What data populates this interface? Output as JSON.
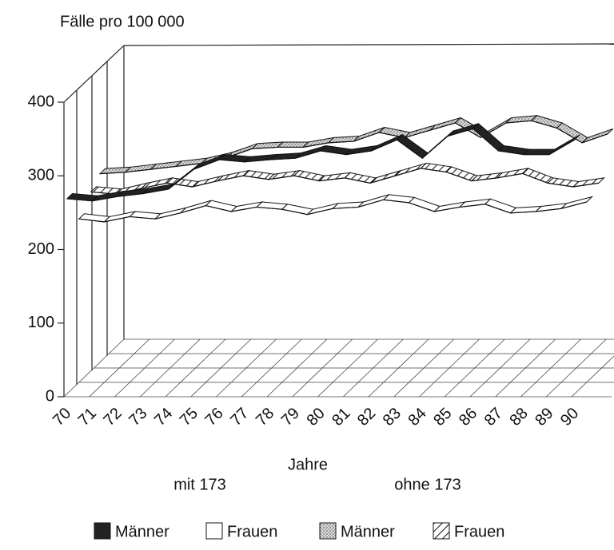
{
  "chart_data": {
    "type": "line3d",
    "title": "Fälle pro 100 000",
    "x_label": "Jahre",
    "annotations": [
      "mit 173",
      "ohne 173"
    ],
    "categories": [
      "70",
      "71",
      "72",
      "73",
      "74",
      "75",
      "76",
      "77",
      "78",
      "79",
      "80",
      "81",
      "82",
      "83",
      "84",
      "85",
      "86",
      "87",
      "88",
      "89",
      "90"
    ],
    "series": [
      {
        "name": "Männer",
        "color": "#222222",
        "pattern": "solid",
        "values": [
          265,
          262,
          268,
          272,
          278,
          305,
          318,
          315,
          318,
          320,
          330,
          325,
          330,
          345,
          320,
          350,
          360,
          330,
          325,
          325,
          345
        ]
      },
      {
        "name": "Frauen",
        "color": "#ffffff",
        "pattern": "solid",
        "values": [
          222,
          218,
          225,
          222,
          230,
          240,
          232,
          238,
          235,
          228,
          236,
          238,
          248,
          244,
          232,
          238,
          242,
          230,
          232,
          236,
          245
        ]
      },
      {
        "name": "Männer",
        "color": "#bbbbbb",
        "pattern": "dots",
        "values": [
          256,
          258,
          262,
          266,
          270,
          278,
          290,
          292,
          292,
          298,
          300,
          312,
          305,
          315,
          325,
          305,
          325,
          328,
          318,
          298,
          310
        ]
      },
      {
        "name": "Frauen",
        "color": "#ffffff",
        "pattern": "hatch",
        "values": [
          243,
          240,
          248,
          255,
          250,
          258,
          265,
          260,
          265,
          258,
          262,
          255,
          265,
          275,
          270,
          258,
          262,
          268,
          255,
          250,
          255
        ]
      }
    ],
    "ylim": [
      0,
      400
    ],
    "yticks": [
      0,
      100,
      200,
      300,
      400
    ]
  }
}
